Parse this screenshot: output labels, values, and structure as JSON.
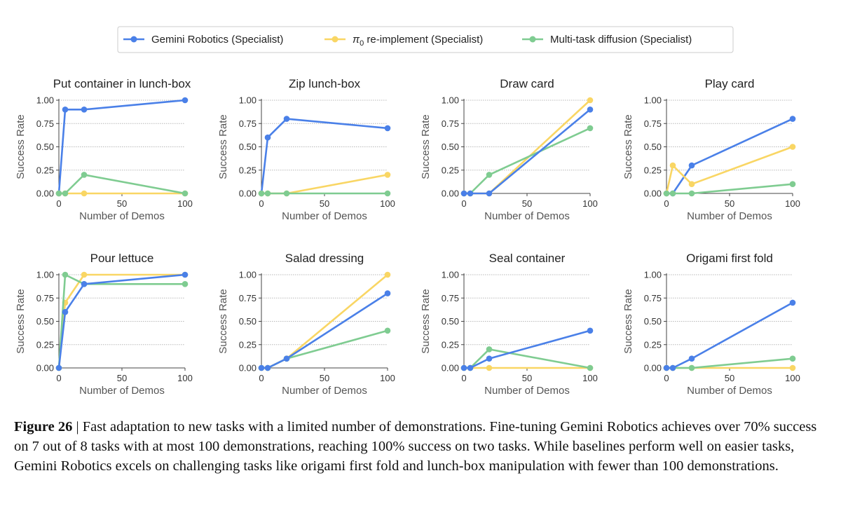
{
  "colors": {
    "gemini": "#4a80e8",
    "pi0": "#f9d664",
    "diffusion": "#7fcc91",
    "grid": "#b8b8b8",
    "axis": "#444444"
  },
  "legend": {
    "items": [
      {
        "key": "gemini",
        "label": "Gemini Robotics (Specialist)"
      },
      {
        "key": "pi0",
        "label_symbol": "π",
        "label_sub": "0",
        "label_rest": " re-implement (Specialist)"
      },
      {
        "key": "diffusion",
        "label": "Multi-task diffusion (Specialist)"
      }
    ]
  },
  "chart_data": [
    {
      "type": "line",
      "title": "Put container in lunch-box",
      "xlabel": "Number of Demos",
      "ylabel": "Success Rate",
      "x": [
        0,
        5,
        20,
        100
      ],
      "xticks": [
        0,
        50,
        100
      ],
      "yticks": [
        "0.00",
        "0.25",
        "0.50",
        "0.75",
        "1.00"
      ],
      "xlim": [
        0,
        100
      ],
      "ylim": [
        0,
        1
      ],
      "series": [
        {
          "name": "Gemini Robotics (Specialist)",
          "key": "gemini",
          "values": [
            0,
            0.9,
            0.9,
            1.0
          ]
        },
        {
          "name": "π0 re-implement (Specialist)",
          "key": "pi0",
          "values": [
            0,
            0,
            0,
            0
          ]
        },
        {
          "name": "Multi-task diffusion (Specialist)",
          "key": "diffusion",
          "values": [
            0,
            0,
            0.2,
            0
          ]
        }
      ]
    },
    {
      "type": "line",
      "title": "Zip lunch-box",
      "xlabel": "Number of Demos",
      "ylabel": "Success Rate",
      "x": [
        0,
        5,
        20,
        100
      ],
      "xticks": [
        0,
        50,
        100
      ],
      "yticks": [
        "0.00",
        "0.25",
        "0.50",
        "0.75",
        "1.00"
      ],
      "xlim": [
        0,
        100
      ],
      "ylim": [
        0,
        1
      ],
      "series": [
        {
          "name": "Gemini Robotics (Specialist)",
          "key": "gemini",
          "values": [
            0,
            0.6,
            0.8,
            0.7
          ]
        },
        {
          "name": "π0 re-implement (Specialist)",
          "key": "pi0",
          "values": [
            0,
            0,
            0,
            0.2
          ]
        },
        {
          "name": "Multi-task diffusion (Specialist)",
          "key": "diffusion",
          "values": [
            0,
            0,
            0,
            0
          ]
        }
      ]
    },
    {
      "type": "line",
      "title": "Draw card",
      "xlabel": "Number of Demos",
      "ylabel": "Success Rate",
      "x": [
        0,
        5,
        20,
        100
      ],
      "xticks": [
        0,
        50,
        100
      ],
      "yticks": [
        "0.00",
        "0.25",
        "0.50",
        "0.75",
        "1.00"
      ],
      "xlim": [
        0,
        100
      ],
      "ylim": [
        0,
        1
      ],
      "series": [
        {
          "name": "π0 re-implement (Specialist)",
          "key": "pi0",
          "values": [
            0,
            0,
            0,
            1.0
          ]
        },
        {
          "name": "Multi-task diffusion (Specialist)",
          "key": "diffusion",
          "values": [
            0,
            0,
            0.2,
            0.7
          ]
        },
        {
          "name": "Gemini Robotics (Specialist)",
          "key": "gemini",
          "values": [
            0,
            0,
            0,
            0.9
          ]
        }
      ]
    },
    {
      "type": "line",
      "title": "Play card",
      "xlabel": "Number of Demos",
      "ylabel": "Success Rate",
      "x": [
        0,
        5,
        20,
        100
      ],
      "xticks": [
        0,
        50,
        100
      ],
      "yticks": [
        "0.00",
        "0.25",
        "0.50",
        "0.75",
        "1.00"
      ],
      "xlim": [
        0,
        100
      ],
      "ylim": [
        0,
        1
      ],
      "series": [
        {
          "name": "Gemini Robotics (Specialist)",
          "key": "gemini",
          "values": [
            0,
            0,
            0.3,
            0.8
          ]
        },
        {
          "name": "π0 re-implement (Specialist)",
          "key": "pi0",
          "values": [
            0,
            0.3,
            0.1,
            0.5
          ]
        },
        {
          "name": "Multi-task diffusion (Specialist)",
          "key": "diffusion",
          "values": [
            0,
            0,
            0,
            0.1
          ]
        }
      ]
    },
    {
      "type": "line",
      "title": "Pour lettuce",
      "xlabel": "Number of Demos",
      "ylabel": "Success Rate",
      "x": [
        0,
        5,
        20,
        100
      ],
      "xticks": [
        0,
        50,
        100
      ],
      "yticks": [
        "0.00",
        "0.25",
        "0.50",
        "0.75",
        "1.00"
      ],
      "xlim": [
        0,
        100
      ],
      "ylim": [
        0,
        1
      ],
      "series": [
        {
          "name": "π0 re-implement (Specialist)",
          "key": "pi0",
          "values": [
            0,
            0.7,
            1.0,
            1.0
          ]
        },
        {
          "name": "Multi-task diffusion (Specialist)",
          "key": "diffusion",
          "values": [
            0,
            1.0,
            0.9,
            0.9
          ]
        },
        {
          "name": "Gemini Robotics (Specialist)",
          "key": "gemini",
          "values": [
            0,
            0.6,
            0.9,
            1.0
          ]
        }
      ]
    },
    {
      "type": "line",
      "title": "Salad dressing",
      "xlabel": "Number of Demos",
      "ylabel": "Success Rate",
      "x": [
        0,
        5,
        20,
        100
      ],
      "xticks": [
        0,
        50,
        100
      ],
      "yticks": [
        "0.00",
        "0.25",
        "0.50",
        "0.75",
        "1.00"
      ],
      "xlim": [
        0,
        100
      ],
      "ylim": [
        0,
        1
      ],
      "series": [
        {
          "name": "π0 re-implement (Specialist)",
          "key": "pi0",
          "values": [
            0,
            0,
            0.1,
            1.0
          ]
        },
        {
          "name": "Multi-task diffusion (Specialist)",
          "key": "diffusion",
          "values": [
            0,
            0,
            0.1,
            0.4
          ]
        },
        {
          "name": "Gemini Robotics (Specialist)",
          "key": "gemini",
          "values": [
            0,
            0,
            0.1,
            0.8
          ]
        }
      ]
    },
    {
      "type": "line",
      "title": "Seal container",
      "xlabel": "Number of Demos",
      "ylabel": "Success Rate",
      "x": [
        0,
        5,
        20,
        100
      ],
      "xticks": [
        0,
        50,
        100
      ],
      "yticks": [
        "0.00",
        "0.25",
        "0.50",
        "0.75",
        "1.00"
      ],
      "xlim": [
        0,
        100
      ],
      "ylim": [
        0,
        1
      ],
      "series": [
        {
          "name": "π0 re-implement (Specialist)",
          "key": "pi0",
          "values": [
            0,
            0,
            0,
            0
          ]
        },
        {
          "name": "Multi-task diffusion (Specialist)",
          "key": "diffusion",
          "values": [
            0,
            0,
            0.2,
            0
          ]
        },
        {
          "name": "Gemini Robotics (Specialist)",
          "key": "gemini",
          "values": [
            0,
            0,
            0.1,
            0.4
          ]
        }
      ]
    },
    {
      "type": "line",
      "title": "Origami first fold",
      "xlabel": "Number of Demos",
      "ylabel": "Success Rate",
      "x": [
        0,
        5,
        20,
        100
      ],
      "xticks": [
        0,
        50,
        100
      ],
      "yticks": [
        "0.00",
        "0.25",
        "0.50",
        "0.75",
        "1.00"
      ],
      "xlim": [
        0,
        100
      ],
      "ylim": [
        0,
        1
      ],
      "series": [
        {
          "name": "π0 re-implement (Specialist)",
          "key": "pi0",
          "values": [
            0,
            0,
            0,
            0
          ]
        },
        {
          "name": "Multi-task diffusion (Specialist)",
          "key": "diffusion",
          "values": [
            0,
            0,
            0,
            0.1
          ]
        },
        {
          "name": "Gemini Robotics (Specialist)",
          "key": "gemini",
          "values": [
            0,
            0,
            0.1,
            0.7
          ]
        }
      ]
    }
  ],
  "caption": {
    "label": "Figure 26",
    "separator": " | ",
    "text": "Fast adaptation to new tasks with a limited number of demonstrations. Fine-tuning Gemini Robotics achieves over 70% success on 7 out of 8 tasks with at most 100 demonstrations, reaching 100% success on two tasks. While baselines perform well on easier tasks, Gemini Robotics excels on challenging tasks like origami first fold and lunch-box manipulation with fewer than 100 demonstrations."
  }
}
